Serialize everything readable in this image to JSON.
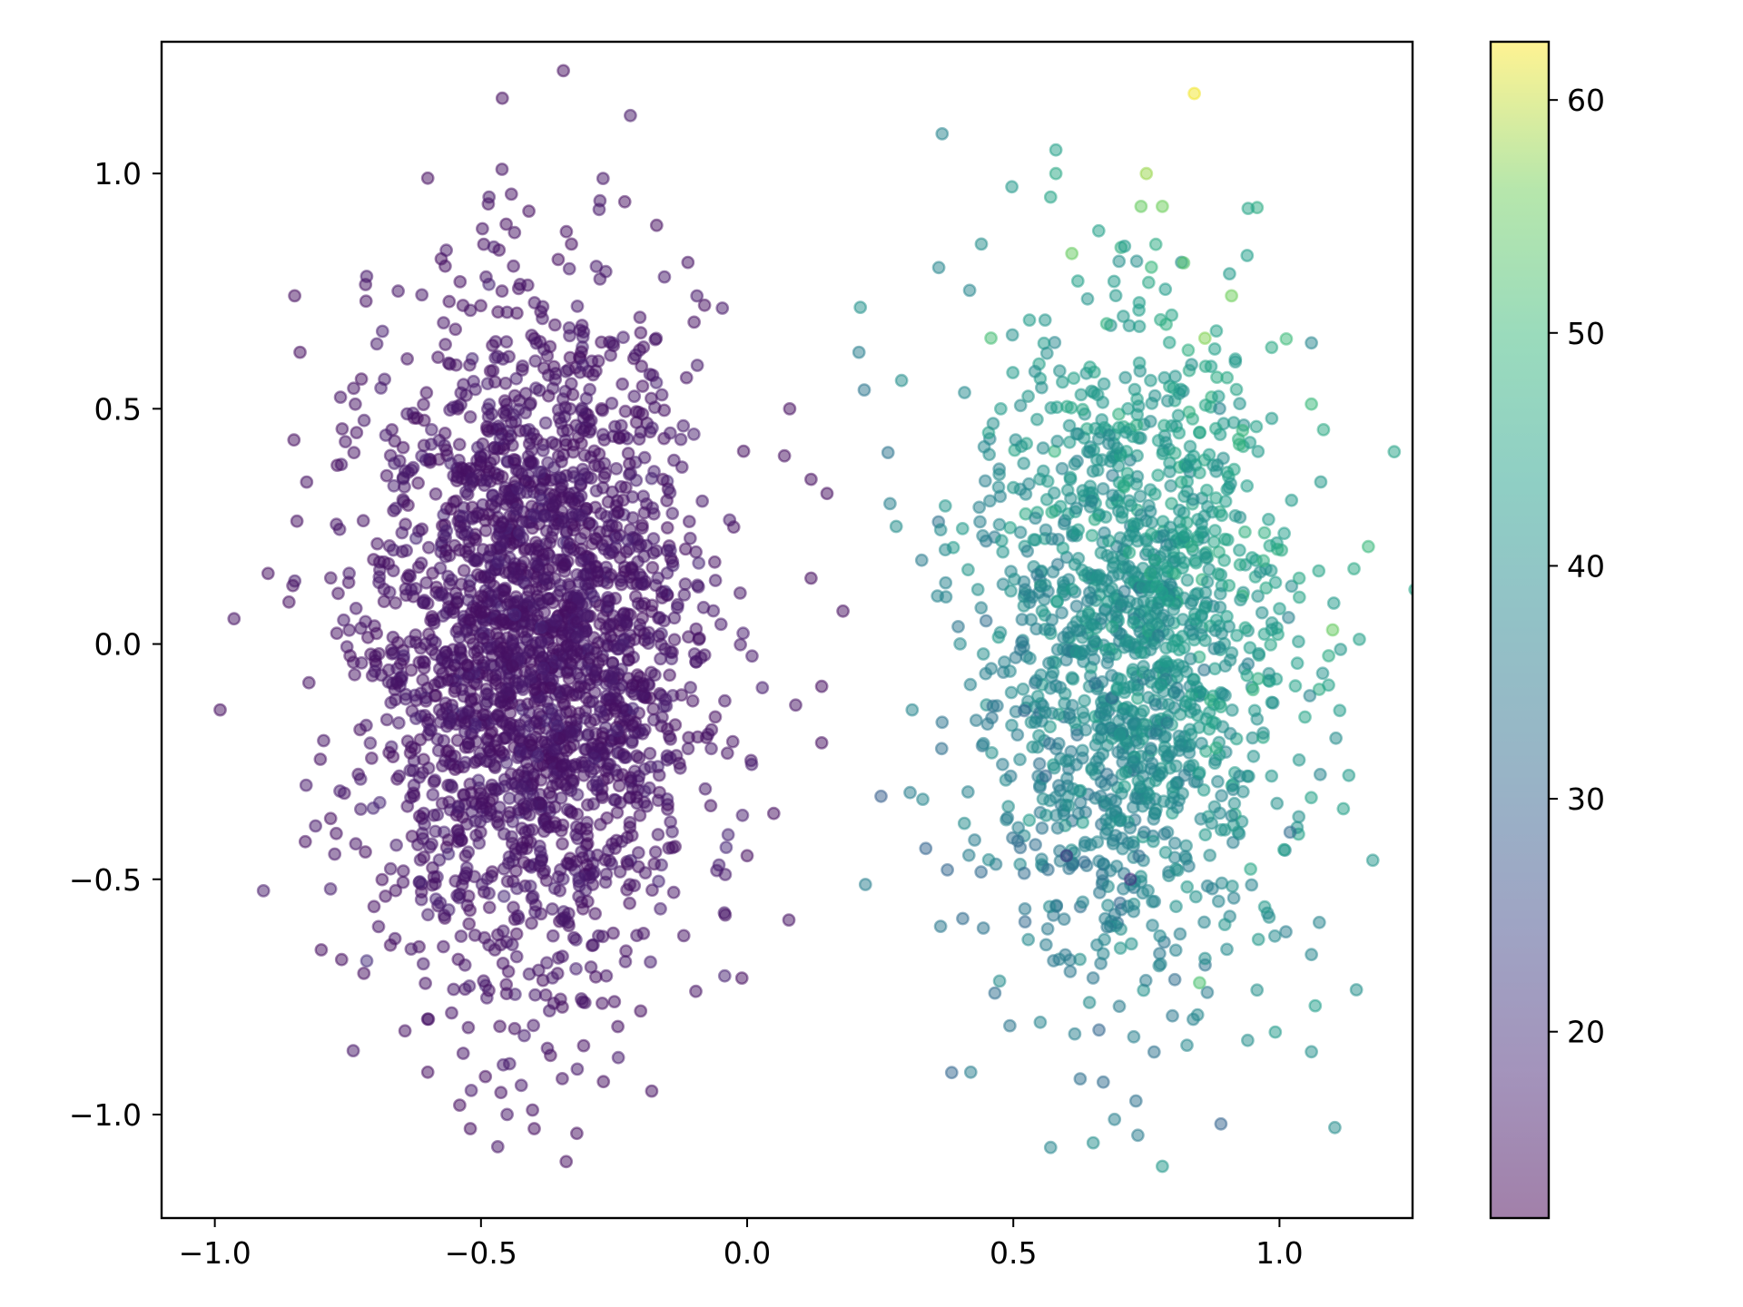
{
  "chart_data": {
    "type": "scatter",
    "title": "",
    "xlabel": "",
    "ylabel": "",
    "xlim": [
      -1.1,
      1.25
    ],
    "ylim": [
      -1.22,
      1.28
    ],
    "x_ticks": [
      -1.0,
      -0.5,
      0.0,
      0.5,
      1.0
    ],
    "x_tick_labels": [
      "−1.0",
      "−0.5",
      "0.0",
      "0.5",
      "1.0"
    ],
    "y_ticks": [
      -1.0,
      -0.5,
      0.0,
      0.5,
      1.0
    ],
    "y_tick_labels": [
      "−1.0",
      "−0.5",
      "0.0",
      "0.5",
      "1.0"
    ],
    "grid": false,
    "marker_alpha": 0.5,
    "colormap": "viridis",
    "colorbar": {
      "range": [
        12,
        62.5
      ],
      "ticks": [
        20,
        30,
        40,
        50,
        60
      ],
      "tick_labels": [
        "20",
        "30",
        "40",
        "50",
        "60"
      ]
    },
    "series": [
      {
        "cluster_center": [
          -0.4,
          0.0
        ],
        "approx_point_count": 2500,
        "color_value_typical": 14,
        "points": [
          {
            "x": -0.46,
            "y": 1.16,
            "c": 14
          },
          {
            "x": -0.6,
            "y": 0.99,
            "c": 14
          },
          {
            "x": -0.41,
            "y": 0.92,
            "c": 14
          },
          {
            "x": -0.23,
            "y": 0.94,
            "c": 14
          },
          {
            "x": -0.17,
            "y": 0.89,
            "c": 14
          },
          {
            "x": -0.33,
            "y": 0.85,
            "c": 14
          },
          {
            "x": -0.85,
            "y": 0.74,
            "c": 14
          },
          {
            "x": -0.84,
            "y": 0.62,
            "c": 14
          },
          {
            "x": -0.08,
            "y": 0.72,
            "c": 14
          },
          {
            "x": -0.99,
            "y": -0.14,
            "c": 14
          },
          {
            "x": -0.9,
            "y": 0.15,
            "c": 14
          },
          {
            "x": -0.83,
            "y": -0.42,
            "c": 14
          },
          {
            "x": -0.8,
            "y": -0.65,
            "c": 14
          },
          {
            "x": -0.72,
            "y": -0.7,
            "c": 14
          },
          {
            "x": -0.6,
            "y": -0.91,
            "c": 14
          },
          {
            "x": -0.54,
            "y": -0.98,
            "c": 14
          },
          {
            "x": -0.52,
            "y": -1.03,
            "c": 14
          },
          {
            "x": -0.4,
            "y": -1.03,
            "c": 14
          },
          {
            "x": -0.34,
            "y": -1.1,
            "c": 14
          },
          {
            "x": -0.32,
            "y": -1.04,
            "c": 14
          },
          {
            "x": -0.27,
            "y": -0.93,
            "c": 14
          },
          {
            "x": 0.08,
            "y": 0.5,
            "c": 14
          },
          {
            "x": 0.07,
            "y": 0.4,
            "c": 14
          },
          {
            "x": 0.12,
            "y": 0.35,
            "c": 14
          },
          {
            "x": 0.15,
            "y": 0.32,
            "c": 14
          },
          {
            "x": 0.12,
            "y": 0.14,
            "c": 14
          },
          {
            "x": 0.18,
            "y": 0.07,
            "c": 14
          },
          {
            "x": 0.14,
            "y": -0.09,
            "c": 14
          },
          {
            "x": 0.14,
            "y": -0.21,
            "c": 14
          },
          {
            "x": 0.05,
            "y": -0.36,
            "c": 14
          },
          {
            "x": 0.0,
            "y": -0.45,
            "c": 14
          },
          {
            "x": -0.01,
            "y": -0.71,
            "c": 14
          },
          {
            "x": -0.2,
            "y": -0.78,
            "c": 14
          },
          {
            "x": -0.67,
            "y": -0.64,
            "c": 14
          },
          {
            "x": -0.77,
            "y": 0.38,
            "c": 14
          },
          {
            "x": -0.62,
            "y": 0.48,
            "c": 14
          }
        ]
      },
      {
        "cluster_center": [
          0.72,
          0.0
        ],
        "approx_point_count": 1500,
        "color_value_typical": 40,
        "points": [
          {
            "x": 0.84,
            "y": 1.17,
            "c": 62
          },
          {
            "x": 0.58,
            "y": 1.05,
            "c": 44
          },
          {
            "x": 0.58,
            "y": 1.0,
            "c": 46
          },
          {
            "x": 0.75,
            "y": 1.0,
            "c": 58
          },
          {
            "x": 0.74,
            "y": 0.93,
            "c": 55
          },
          {
            "x": 0.78,
            "y": 0.93,
            "c": 56
          },
          {
            "x": 0.57,
            "y": 0.95,
            "c": 45
          },
          {
            "x": 0.44,
            "y": 0.85,
            "c": 40
          },
          {
            "x": 0.61,
            "y": 0.83,
            "c": 55
          },
          {
            "x": 0.36,
            "y": 0.8,
            "c": 38
          },
          {
            "x": 0.82,
            "y": 0.81,
            "c": 53
          },
          {
            "x": 0.91,
            "y": 0.74,
            "c": 56
          },
          {
            "x": 0.86,
            "y": 0.65,
            "c": 57
          },
          {
            "x": 0.21,
            "y": 0.62,
            "c": 36
          },
          {
            "x": 0.22,
            "y": 0.54,
            "c": 34
          },
          {
            "x": 0.29,
            "y": 0.56,
            "c": 40
          },
          {
            "x": 0.28,
            "y": 0.25,
            "c": 40
          },
          {
            "x": 0.33,
            "y": -0.33,
            "c": 38
          },
          {
            "x": 0.31,
            "y": -0.14,
            "c": 38
          },
          {
            "x": 0.42,
            "y": -0.91,
            "c": 36
          },
          {
            "x": 0.57,
            "y": -1.07,
            "c": 38
          },
          {
            "x": 0.65,
            "y": -1.06,
            "c": 40
          },
          {
            "x": 0.78,
            "y": -1.11,
            "c": 42
          },
          {
            "x": 0.89,
            "y": -1.02,
            "c": 30
          },
          {
            "x": 1.06,
            "y": -0.66,
            "c": 38
          },
          {
            "x": 1.02,
            "y": -0.4,
            "c": 32
          },
          {
            "x": 1.12,
            "y": -0.35,
            "c": 44
          },
          {
            "x": 1.14,
            "y": 0.16,
            "c": 46
          },
          {
            "x": 1.15,
            "y": 0.01,
            "c": 44
          },
          {
            "x": 1.1,
            "y": 0.03,
            "c": 55
          },
          {
            "x": 1.06,
            "y": 0.64,
            "c": 38
          },
          {
            "x": 1.06,
            "y": 0.51,
            "c": 50
          },
          {
            "x": 0.85,
            "y": -0.72,
            "c": 52
          },
          {
            "x": 0.72,
            "y": -0.5,
            "c": 20
          },
          {
            "x": 0.6,
            "y": -0.45,
            "c": 22
          }
        ]
      }
    ]
  }
}
